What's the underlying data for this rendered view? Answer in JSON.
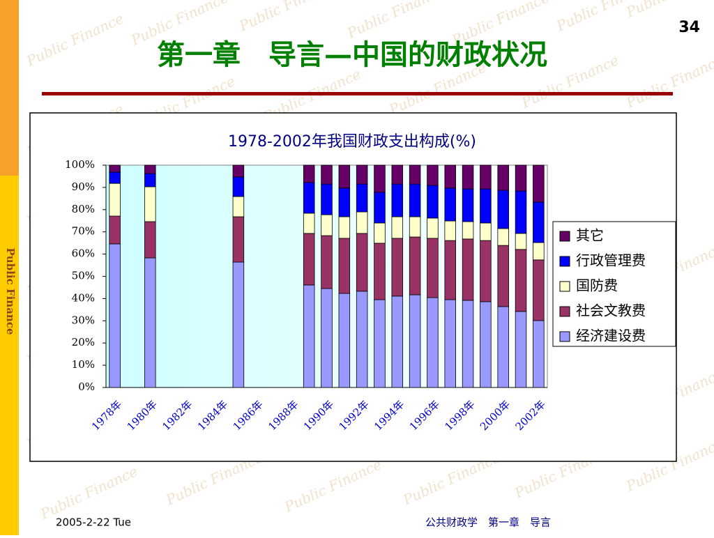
{
  "slide": {
    "page_number": "34",
    "title": "第一章　导言—中国的财政状况",
    "side_label": "Public Finance",
    "watermark": "Public Finance",
    "footer_date": "2005-2-22 Tue",
    "footer_course": "公共财政学　第一章　导言"
  },
  "chart_data": {
    "type": "stacked_bar",
    "title": "1978-2002年我国财政支出构成(%)",
    "categories": [
      "1978年",
      null,
      "1980年",
      null,
      "1982年",
      null,
      "1984年",
      null,
      "1986年",
      null,
      "1988年",
      null,
      "1990年",
      null,
      "1992年",
      null,
      "1994年",
      null,
      "1996年",
      null,
      "1998年",
      null,
      "2000年",
      null,
      "2002年"
    ],
    "series": [
      {
        "name": "经济建设费",
        "color": "#9999ff",
        "values": [
          64.6,
          null,
          58.3,
          null,
          null,
          null,
          null,
          56.4,
          null,
          null,
          null,
          46.1,
          44.5,
          42.3,
          43.3,
          39.5,
          41.1,
          41.7,
          40.4,
          39.5,
          39.2,
          38.6,
          36.4,
          34.2,
          30.1
        ]
      },
      {
        "name": "社会文教费",
        "color": "#993366",
        "values": [
          12.5,
          null,
          16.3,
          null,
          null,
          null,
          null,
          20.4,
          null,
          null,
          null,
          23.2,
          23.8,
          24.8,
          26.0,
          25.4,
          26.0,
          26.0,
          26.7,
          26.6,
          27.6,
          27.5,
          27.5,
          27.9,
          27.3
        ]
      },
      {
        "name": "国防费",
        "color": "#ffffcc",
        "values": [
          14.7,
          null,
          15.7,
          null,
          null,
          null,
          null,
          9.1,
          null,
          null,
          null,
          9.1,
          9.4,
          9.7,
          9.7,
          9.1,
          9.7,
          9.1,
          9.1,
          8.8,
          7.8,
          7.9,
          7.6,
          7.2,
          7.8
        ]
      },
      {
        "name": "行政管理费",
        "color": "#0000ff",
        "values": [
          5.1,
          null,
          5.9,
          null,
          null,
          null,
          null,
          8.8,
          null,
          null,
          null,
          13.8,
          13.8,
          12.9,
          12.5,
          13.8,
          14.7,
          14.7,
          14.7,
          14.8,
          14.7,
          15.3,
          17.2,
          19.1,
          18.2
        ]
      },
      {
        "name": "其它",
        "color": "#660066",
        "values": [
          3.1,
          null,
          3.8,
          null,
          null,
          null,
          null,
          5.3,
          null,
          null,
          null,
          7.8,
          8.5,
          10.3,
          8.5,
          12.2,
          8.5,
          8.5,
          9.1,
          10.3,
          10.7,
          10.7,
          11.3,
          11.6,
          16.6
        ]
      }
    ],
    "ylim": [
      0,
      100
    ],
    "yticks": [
      {
        "value": 0,
        "label": "0%"
      },
      {
        "value": 10,
        "label": "10%"
      },
      {
        "value": 20,
        "label": "20%"
      },
      {
        "value": 30,
        "label": "30%"
      },
      {
        "value": 40,
        "label": "40%"
      },
      {
        "value": 50,
        "label": "50%"
      },
      {
        "value": 60,
        "label": "60%"
      },
      {
        "value": 70,
        "label": "70%"
      },
      {
        "value": 80,
        "label": "80%"
      },
      {
        "value": 90,
        "label": "90%"
      },
      {
        "value": 100,
        "label": "100%"
      }
    ],
    "grid": false,
    "legend": "right"
  }
}
